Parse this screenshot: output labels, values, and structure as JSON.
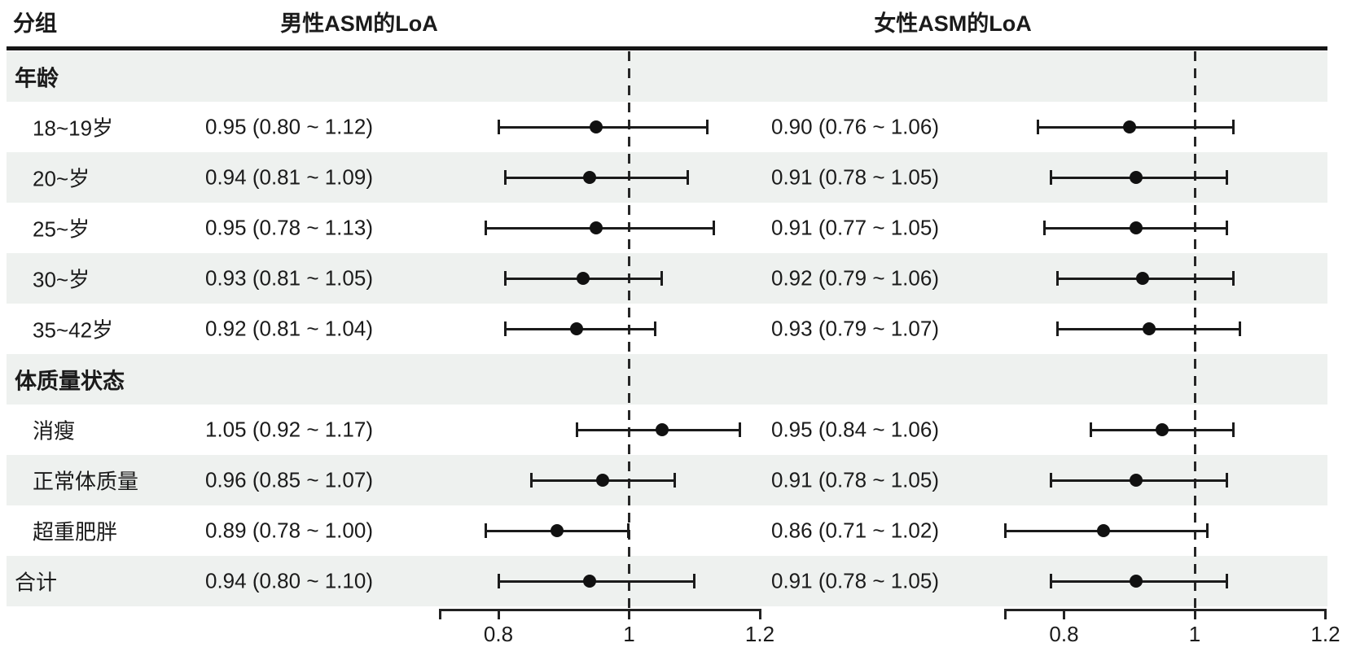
{
  "colors": {
    "row_shade": "#eef1ef",
    "ink": "#1b1b1b"
  },
  "header": {
    "group_column": "分组",
    "male_column": "男性ASM的LoA",
    "female_column": "女性ASM的LoA"
  },
  "axis": {
    "tick_labels": [
      "0.8",
      "1",
      "1.2"
    ],
    "tick_values": [
      0.8,
      1,
      1.2
    ],
    "reference_value": 1
  },
  "rows": [
    {
      "kind": "section",
      "label": "年龄"
    },
    {
      "kind": "item",
      "label": "18~19岁",
      "male": {
        "text": "0.95 (0.80 ~ 1.12)",
        "est": 0.95,
        "lo": 0.8,
        "hi": 1.12
      },
      "female": {
        "text": "0.90 (0.76 ~ 1.06)",
        "est": 0.9,
        "lo": 0.76,
        "hi": 1.06
      }
    },
    {
      "kind": "item",
      "label": "20~岁",
      "male": {
        "text": "0.94 (0.81 ~ 1.09)",
        "est": 0.94,
        "lo": 0.81,
        "hi": 1.09
      },
      "female": {
        "text": "0.91 (0.78 ~ 1.05)",
        "est": 0.91,
        "lo": 0.78,
        "hi": 1.05
      }
    },
    {
      "kind": "item",
      "label": "25~岁",
      "male": {
        "text": "0.95 (0.78 ~ 1.13)",
        "est": 0.95,
        "lo": 0.78,
        "hi": 1.13
      },
      "female": {
        "text": "0.91 (0.77 ~ 1.05)",
        "est": 0.91,
        "lo": 0.77,
        "hi": 1.05
      }
    },
    {
      "kind": "item",
      "label": "30~岁",
      "male": {
        "text": "0.93 (0.81 ~ 1.05)",
        "est": 0.93,
        "lo": 0.81,
        "hi": 1.05
      },
      "female": {
        "text": "0.92 (0.79 ~ 1.06)",
        "est": 0.92,
        "lo": 0.79,
        "hi": 1.06
      }
    },
    {
      "kind": "item",
      "label": "35~42岁",
      "male": {
        "text": "0.92 (0.81 ~ 1.04)",
        "est": 0.92,
        "lo": 0.81,
        "hi": 1.04
      },
      "female": {
        "text": "0.93 (0.79 ~ 1.07)",
        "est": 0.93,
        "lo": 0.79,
        "hi": 1.07
      }
    },
    {
      "kind": "section",
      "label": "体质量状态"
    },
    {
      "kind": "item",
      "label": "消瘦",
      "male": {
        "text": "1.05 (0.92 ~ 1.17)",
        "est": 1.05,
        "lo": 0.92,
        "hi": 1.17
      },
      "female": {
        "text": "0.95 (0.84 ~ 1.06)",
        "est": 0.95,
        "lo": 0.84,
        "hi": 1.06
      }
    },
    {
      "kind": "item",
      "label": "正常体质量",
      "male": {
        "text": "0.96 (0.85 ~ 1.07)",
        "est": 0.96,
        "lo": 0.85,
        "hi": 1.07
      },
      "female": {
        "text": "0.91 (0.78 ~ 1.05)",
        "est": 0.91,
        "lo": 0.78,
        "hi": 1.05
      }
    },
    {
      "kind": "item",
      "label": "超重肥胖",
      "male": {
        "text": "0.89 (0.78 ~ 1.00)",
        "est": 0.89,
        "lo": 0.78,
        "hi": 1.0
      },
      "female": {
        "text": "0.86 (0.71 ~ 1.02)",
        "est": 0.86,
        "lo": 0.71,
        "hi": 1.02
      }
    },
    {
      "kind": "total",
      "label": "合计",
      "male": {
        "text": "0.94 (0.80 ~ 1.10)",
        "est": 0.94,
        "lo": 0.8,
        "hi": 1.1
      },
      "female": {
        "text": "0.91 (0.78 ~ 1.05)",
        "est": 0.91,
        "lo": 0.78,
        "hi": 1.05
      }
    }
  ],
  "chart_data": [
    {
      "type": "forest",
      "title": "男性ASM的LoA",
      "categories": [
        "18~19岁",
        "20~岁",
        "25~岁",
        "30~岁",
        "35~42岁",
        "消瘦",
        "正常体质量",
        "超重肥胖",
        "合计"
      ],
      "estimates": [
        0.95,
        0.94,
        0.95,
        0.93,
        0.92,
        1.05,
        0.96,
        0.89,
        0.94
      ],
      "ci_low": [
        0.8,
        0.81,
        0.78,
        0.81,
        0.81,
        0.92,
        0.85,
        0.78,
        0.8
      ],
      "ci_high": [
        1.12,
        1.09,
        1.13,
        1.05,
        1.04,
        1.17,
        1.07,
        1.0,
        1.1
      ],
      "group_sections": [
        "年龄",
        "体质量状态"
      ],
      "xticks": [
        0.8,
        1,
        1.2
      ],
      "xlim": [
        0.71,
        1.2
      ],
      "reference_line": 1,
      "grid": false,
      "legend": false
    },
    {
      "type": "forest",
      "title": "女性ASM的LoA",
      "categories": [
        "18~19岁",
        "20~岁",
        "25~岁",
        "30~岁",
        "35~42岁",
        "消瘦",
        "正常体质量",
        "超重肥胖",
        "合计"
      ],
      "estimates": [
        0.9,
        0.91,
        0.91,
        0.92,
        0.93,
        0.95,
        0.91,
        0.86,
        0.91
      ],
      "ci_low": [
        0.76,
        0.78,
        0.77,
        0.79,
        0.79,
        0.84,
        0.78,
        0.71,
        0.78
      ],
      "ci_high": [
        1.06,
        1.05,
        1.05,
        1.06,
        1.07,
        1.06,
        1.05,
        1.02,
        1.05
      ],
      "group_sections": [
        "年龄",
        "体质量状态"
      ],
      "xticks": [
        0.8,
        1,
        1.2
      ],
      "xlim": [
        0.71,
        1.2
      ],
      "reference_line": 1,
      "grid": false,
      "legend": false
    }
  ]
}
